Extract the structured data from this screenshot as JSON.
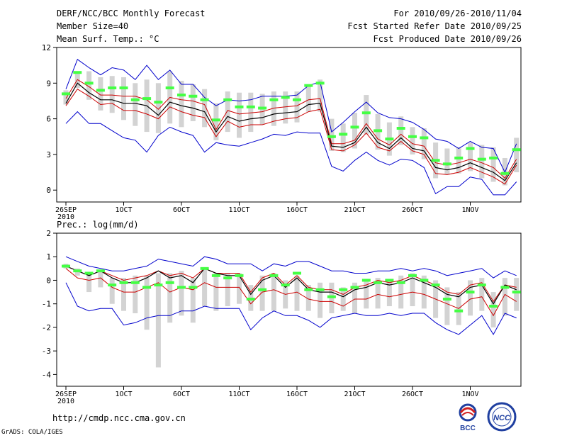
{
  "header": {
    "title": "DERF/NCC/BCC Monthly Forecast",
    "member_size": "Member Size=40",
    "variable": "Mean Surf. Temp.: °C",
    "period": "For 2010/09/26-2010/11/04",
    "started": "Fcst Started Refer Date 2010/09/25",
    "produced": "Fcst Produced Date 2010/09/26"
  },
  "footer": {
    "url": "http://cmdp.ncc.cma.gov.cn",
    "credit": "GrADS: COLA/IGES"
  },
  "logos": {
    "bcc": "BCC",
    "ncc": "NCC"
  },
  "colors": {
    "max_min": "#0000cc",
    "quartile": "#cc0000",
    "median": "#000000",
    "mean": "#44ff44",
    "box": "#d3d3d3"
  },
  "chart_data": [
    {
      "type": "line",
      "title": "Mean Surf. Temp.: °C",
      "ylim": [
        -1,
        12
      ],
      "yticks": [
        0,
        3,
        6,
        9,
        12
      ],
      "xticks": [
        {
          "day": 0,
          "label": "26SEP",
          "sub": "2010"
        },
        {
          "day": 5,
          "label": "1OCT"
        },
        {
          "day": 10,
          "label": "6OCT"
        },
        {
          "day": 15,
          "label": "11OCT"
        },
        {
          "day": 20,
          "label": "16OCT"
        },
        {
          "day": 25,
          "label": "21OCT"
        },
        {
          "day": 30,
          "label": "26OCT"
        },
        {
          "day": 35,
          "label": "1NOV"
        }
      ],
      "max": [
        8.5,
        11.0,
        10.3,
        9.7,
        10.3,
        10.1,
        9.3,
        10.5,
        9.3,
        10.1,
        8.9,
        8.9,
        7.8,
        7.1,
        7.6,
        7.5,
        7.6,
        7.9,
        7.9,
        7.9,
        8.0,
        8.8,
        9.1,
        4.9,
        5.7,
        6.6,
        7.4,
        6.5,
        6.1,
        6.0,
        5.7,
        5.1,
        4.3,
        4.1,
        3.5,
        4.1,
        3.6,
        3.5,
        1.5,
        3.9
      ],
      "upper_q": [
        7.7,
        9.3,
        8.7,
        8.0,
        8.0,
        7.9,
        7.9,
        7.6,
        6.8,
        7.8,
        7.6,
        7.5,
        7.2,
        5.1,
        6.7,
        6.4,
        6.5,
        6.6,
        6.9,
        7.0,
        7.1,
        7.6,
        7.7,
        3.9,
        3.9,
        4.2,
        5.6,
        4.3,
        3.8,
        4.7,
        3.9,
        3.7,
        2.3,
        2.1,
        2.3,
        2.6,
        2.3,
        1.9,
        1.0,
        2.6
      ],
      "median": [
        7.3,
        9.0,
        8.2,
        7.6,
        7.6,
        7.3,
        7.3,
        7.1,
        6.3,
        7.4,
        7.1,
        6.9,
        6.6,
        4.9,
        6.2,
        5.8,
        6.0,
        6.1,
        6.4,
        6.5,
        6.6,
        7.2,
        7.3,
        3.7,
        3.6,
        4.0,
        5.3,
        4.0,
        3.5,
        4.4,
        3.5,
        3.3,
        1.9,
        1.7,
        1.9,
        2.3,
        1.9,
        1.5,
        0.8,
        2.3
      ],
      "lower_q": [
        7.1,
        8.5,
        7.9,
        7.2,
        7.3,
        6.7,
        6.7,
        6.4,
        6.0,
        7.0,
        6.6,
        6.3,
        6.1,
        4.5,
        5.8,
        5.3,
        5.5,
        5.5,
        5.8,
        6.0,
        6.1,
        6.6,
        6.8,
        3.4,
        3.3,
        3.8,
        4.8,
        3.6,
        3.3,
        4.1,
        3.3,
        3.0,
        1.4,
        1.3,
        1.5,
        1.9,
        1.5,
        1.1,
        0.5,
        2.1
      ],
      "min": [
        5.6,
        6.6,
        5.6,
        5.6,
        5.0,
        4.4,
        4.2,
        3.2,
        4.6,
        5.3,
        4.9,
        4.6,
        3.2,
        4.0,
        3.8,
        3.7,
        4.0,
        4.3,
        4.7,
        4.6,
        4.9,
        4.8,
        4.8,
        2.0,
        1.6,
        2.5,
        3.2,
        2.5,
        2.1,
        2.6,
        2.5,
        1.9,
        -0.3,
        0.3,
        0.3,
        1.1,
        0.9,
        -0.4,
        -0.4,
        0.7
      ],
      "mean": [
        8.1,
        9.9,
        9.0,
        8.4,
        8.6,
        8.6,
        7.6,
        7.7,
        7.4,
        8.6,
        8.0,
        7.9,
        7.6,
        5.9,
        7.6,
        7.0,
        7.0,
        6.9,
        7.6,
        7.8,
        7.6,
        8.8,
        9.0,
        4.5,
        4.7,
        5.3,
        6.5,
        5.0,
        4.3,
        5.2,
        4.5,
        4.4,
        2.5,
        2.2,
        2.7,
        3.5,
        2.6,
        2.7,
        1.4,
        3.4
      ],
      "box_top": [
        8.4,
        10.0,
        10.0,
        9.5,
        9.6,
        9.5,
        9.0,
        9.3,
        9.0,
        10.0,
        9.2,
        8.9,
        8.5,
        7.3,
        8.3,
        8.2,
        8.2,
        8.1,
        8.3,
        8.3,
        8.3,
        8.9,
        9.3,
        6.0,
        5.6,
        6.5,
        8.0,
        6.4,
        5.7,
        6.2,
        5.3,
        5.2,
        4.0,
        3.5,
        3.6,
        4.0,
        3.8,
        3.6,
        2.7,
        4.4
      ],
      "box_bot": [
        7.2,
        8.6,
        7.6,
        6.7,
        6.5,
        5.9,
        5.4,
        4.9,
        4.8,
        5.6,
        5.3,
        5.8,
        5.3,
        4.2,
        4.9,
        4.4,
        4.9,
        5.5,
        5.4,
        5.6,
        5.7,
        6.6,
        6.6,
        3.3,
        3.2,
        3.5,
        4.7,
        3.4,
        2.9,
        3.8,
        3.0,
        2.6,
        1.0,
        1.3,
        1.4,
        1.6,
        1.0,
        0.7,
        0.4,
        1.5
      ]
    },
    {
      "type": "line",
      "title": "Prec.: log(mm/d)",
      "ylim": [
        -4.5,
        2
      ],
      "yticks": [
        -4,
        -3,
        -2,
        -1,
        0,
        1,
        2
      ],
      "xticks": [
        {
          "day": 0,
          "label": "26SEP",
          "sub": "2010"
        },
        {
          "day": 5,
          "label": "1OCT"
        },
        {
          "day": 10,
          "label": "6OCT"
        },
        {
          "day": 15,
          "label": "11OCT"
        },
        {
          "day": 20,
          "label": "16OCT"
        },
        {
          "day": 25,
          "label": "21OCT"
        },
        {
          "day": 30,
          "label": "26OCT"
        },
        {
          "day": 35,
          "label": "1NOV"
        }
      ],
      "max": [
        1.0,
        0.8,
        0.6,
        0.5,
        0.4,
        0.4,
        0.5,
        0.6,
        0.9,
        0.8,
        0.7,
        0.6,
        1.0,
        0.9,
        0.7,
        0.7,
        0.7,
        0.4,
        0.7,
        0.6,
        0.8,
        0.8,
        0.6,
        0.4,
        0.4,
        0.3,
        0.3,
        0.4,
        0.4,
        0.5,
        0.4,
        0.5,
        0.4,
        0.2,
        0.3,
        0.4,
        0.5,
        0.1,
        0.4,
        0.2
      ],
      "upper_q": [
        0.6,
        0.4,
        0.2,
        0.4,
        0.2,
        0.0,
        0.1,
        0.2,
        0.4,
        0.2,
        0.3,
        0.1,
        0.5,
        0.3,
        0.3,
        0.3,
        -0.5,
        0.1,
        0.3,
        -0.2,
        0.2,
        -0.3,
        -0.4,
        -0.4,
        -0.6,
        -0.3,
        -0.2,
        0.0,
        -0.1,
        0.0,
        0.2,
        0.0,
        -0.2,
        -0.5,
        -0.6,
        -0.2,
        -0.1,
        -0.9,
        -0.2,
        -0.3
      ],
      "median": [
        0.6,
        0.4,
        0.2,
        0.4,
        0.1,
        -0.1,
        -0.1,
        0.1,
        0.4,
        0.1,
        0.2,
        -0.1,
        0.5,
        0.3,
        0.2,
        0.2,
        -0.6,
        0.0,
        0.2,
        -0.3,
        0.1,
        -0.4,
        -0.5,
        -0.5,
        -0.7,
        -0.4,
        -0.3,
        -0.1,
        -0.2,
        -0.1,
        0.1,
        -0.1,
        -0.3,
        -0.6,
        -0.7,
        -0.3,
        -0.2,
        -1.0,
        -0.2,
        -0.4
      ],
      "lower_q": [
        0.5,
        0.1,
        0.0,
        0.1,
        -0.3,
        -0.5,
        -0.5,
        -0.3,
        -0.1,
        -0.5,
        -0.3,
        -0.4,
        -0.1,
        -0.3,
        -0.3,
        -0.3,
        -1.0,
        -0.5,
        -0.4,
        -0.6,
        -0.5,
        -0.8,
        -0.9,
        -0.9,
        -1.1,
        -0.8,
        -0.8,
        -0.6,
        -0.7,
        -0.6,
        -0.5,
        -0.6,
        -0.8,
        -1.0,
        -1.2,
        -0.8,
        -0.7,
        -1.5,
        -0.6,
        -0.9
      ],
      "min": [
        -0.1,
        -1.1,
        -1.3,
        -1.2,
        -1.2,
        -1.9,
        -1.8,
        -1.6,
        -1.5,
        -1.5,
        -1.3,
        -1.3,
        -1.1,
        -1.2,
        -1.2,
        -1.2,
        -2.1,
        -1.6,
        -1.3,
        -1.5,
        -1.5,
        -1.7,
        -2.0,
        -1.6,
        -1.5,
        -1.4,
        -1.5,
        -1.5,
        -1.4,
        -1.5,
        -1.4,
        -1.4,
        -1.8,
        -2.1,
        -2.3,
        -1.9,
        -1.5,
        -2.3,
        -1.4,
        -1.6
      ],
      "mean": [
        0.6,
        0.4,
        0.3,
        0.4,
        -0.2,
        -0.1,
        -0.1,
        -0.3,
        -0.2,
        -0.1,
        -0.3,
        -0.3,
        0.5,
        0.2,
        0.1,
        0.2,
        -0.8,
        -0.4,
        0.2,
        -0.2,
        0.3,
        -0.4,
        -0.4,
        -0.7,
        -0.4,
        -0.3,
        0.0,
        -0.1,
        0.0,
        -0.1,
        0.2,
        0.0,
        -0.2,
        -0.8,
        -1.3,
        -0.5,
        -0.2,
        -1.1,
        -0.3,
        -0.5
      ],
      "box_top": [
        0.7,
        0.5,
        0.3,
        0.4,
        0.1,
        0.1,
        0.2,
        0.2,
        0.3,
        0.3,
        0.4,
        0.1,
        0.5,
        0.3,
        0.3,
        0.3,
        -0.2,
        0.2,
        0.3,
        0.0,
        0.2,
        -0.2,
        -0.1,
        -0.1,
        -0.3,
        -0.1,
        0.0,
        0.1,
        0.0,
        0.2,
        0.3,
        0.2,
        0.0,
        -0.3,
        -0.5,
        0.0,
        0.1,
        -0.5,
        0.1,
        0.1
      ],
      "box_bot": [
        0.5,
        0.2,
        -0.5,
        -0.3,
        -1.0,
        -1.3,
        -1.4,
        -2.1,
        -3.7,
        -1.8,
        -1.5,
        -1.8,
        -1.1,
        -1.3,
        -1.1,
        -1.0,
        -1.3,
        -1.3,
        -1.3,
        -1.2,
        -1.3,
        -1.3,
        -1.6,
        -1.4,
        -1.3,
        -1.4,
        -1.2,
        -1.2,
        -1.1,
        -1.2,
        -1.1,
        -1.2,
        -1.6,
        -1.9,
        -1.9,
        -1.5,
        -1.3,
        -2.0,
        -1.5,
        -1.3
      ]
    }
  ]
}
